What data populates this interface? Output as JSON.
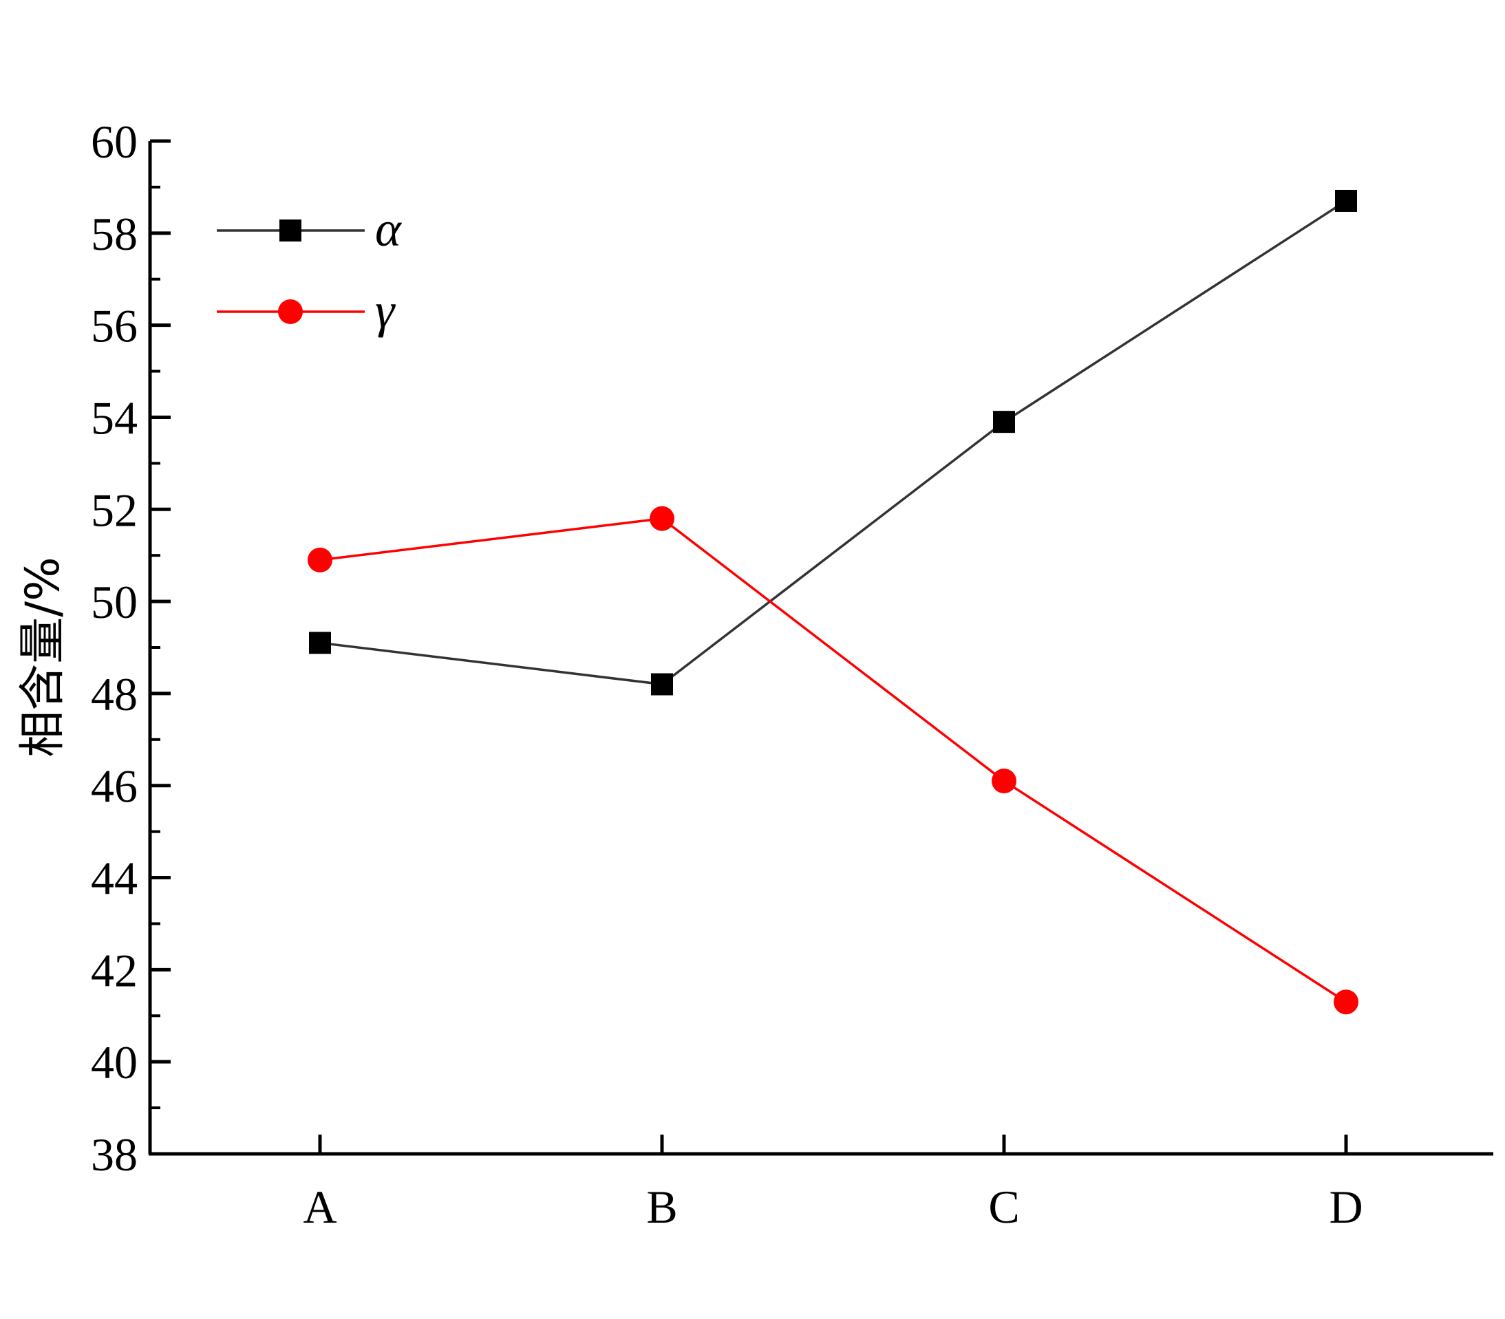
{
  "chart_data": {
    "type": "line",
    "title": "",
    "xlabel": "",
    "ylabel": "相含量/%",
    "categories": [
      "A",
      "B",
      "C",
      "D"
    ],
    "ylim": [
      38,
      60
    ],
    "yticks": [
      38,
      40,
      42,
      44,
      46,
      48,
      50,
      52,
      54,
      56,
      58,
      60
    ],
    "grid": false,
    "legend": "top-left",
    "series": [
      {
        "name": "α",
        "values": [
          49.1,
          48.2,
          53.9,
          58.7
        ],
        "color": "#000000",
        "line_color": "#333333",
        "marker": "square"
      },
      {
        "name": "γ",
        "values": [
          50.9,
          51.8,
          46.1,
          41.3
        ],
        "color": "#ff0000",
        "line_color": "#ff0000",
        "marker": "circle"
      }
    ]
  }
}
